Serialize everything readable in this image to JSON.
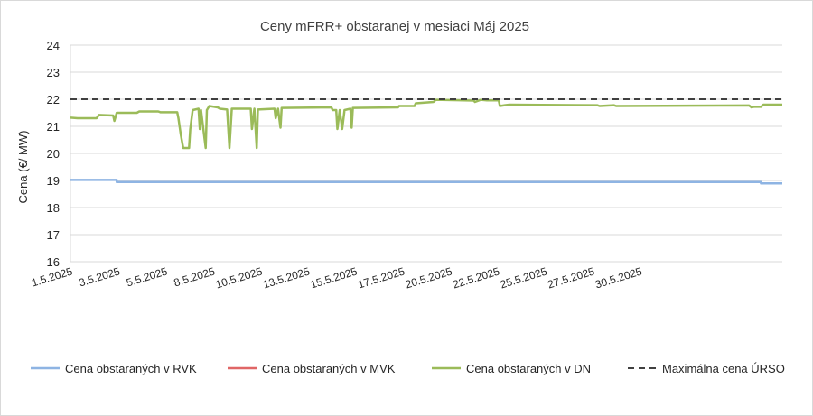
{
  "chart_data": {
    "type": "line",
    "title": "Ceny mFRR+ obstaranej v mesiaci Máj 2025",
    "ylabel": "Cena (€/ MW)",
    "xlabel": "",
    "ylim": [
      16,
      24
    ],
    "yticks": [
      16,
      17,
      18,
      19,
      20,
      21,
      22,
      23,
      24
    ],
    "x_range": [
      "1.5.2025",
      "31.5.2025"
    ],
    "x_ticks": [
      {
        "label": "1.5.2025",
        "day": 1
      },
      {
        "label": "3.5.2025",
        "day": 3
      },
      {
        "label": "5.5.2025",
        "day": 5
      },
      {
        "label": "8.5.2025",
        "day": 7
      },
      {
        "label": "10.5.2025",
        "day": 9
      },
      {
        "label": "13.5.2025",
        "day": 11
      },
      {
        "label": "15.5.2025",
        "day": 13
      },
      {
        "label": "17.5.2025",
        "day": 15
      },
      {
        "label": "20.5.2025",
        "day": 17
      },
      {
        "label": "22.5.2025",
        "day": 19
      },
      {
        "label": "25.5.2025",
        "day": 21
      },
      {
        "label": "27.5.2025",
        "day": 23
      },
      {
        "label": "30.5.2025",
        "day": 25
      }
    ],
    "grid": "horizontal",
    "legend": "bottom",
    "series": [
      {
        "name": "Cena obstaraných v RVK",
        "color": "#8eb4e3",
        "dash": "solid",
        "points": [
          [
            1,
            19.02
          ],
          [
            2.95,
            19.02
          ],
          [
            2.95,
            18.94
          ],
          [
            30.1,
            18.94
          ],
          [
            30.1,
            18.89
          ],
          [
            31,
            18.89
          ]
        ]
      },
      {
        "name": "Cena obstaraných v MVK",
        "color": "#e06666",
        "dash": "solid",
        "points": []
      },
      {
        "name": "Cena obstaraných v DN",
        "color": "#9bbb59",
        "dash": "solid",
        "points": [
          [
            1,
            21.32
          ],
          [
            1.3,
            21.3
          ],
          [
            2.1,
            21.3
          ],
          [
            2.2,
            21.42
          ],
          [
            2.8,
            21.4
          ],
          [
            2.85,
            21.2
          ],
          [
            2.95,
            21.5
          ],
          [
            3.8,
            21.5
          ],
          [
            3.9,
            21.55
          ],
          [
            4.7,
            21.55
          ],
          [
            4.8,
            21.52
          ],
          [
            5.5,
            21.52
          ],
          [
            5.55,
            21.3
          ],
          [
            5.65,
            20.7
          ],
          [
            5.75,
            20.2
          ],
          [
            6.0,
            20.2
          ],
          [
            6.05,
            20.9
          ],
          [
            6.15,
            21.6
          ],
          [
            6.4,
            21.65
          ],
          [
            6.45,
            20.9
          ],
          [
            6.5,
            21.6
          ],
          [
            6.7,
            20.2
          ],
          [
            6.75,
            21.6
          ],
          [
            6.85,
            21.75
          ],
          [
            7.2,
            21.7
          ],
          [
            7.3,
            21.65
          ],
          [
            7.6,
            21.62
          ],
          [
            7.7,
            20.2
          ],
          [
            7.8,
            21.65
          ],
          [
            8.6,
            21.65
          ],
          [
            8.65,
            20.9
          ],
          [
            8.75,
            21.65
          ],
          [
            8.85,
            20.2
          ],
          [
            8.9,
            21.62
          ],
          [
            9.6,
            21.65
          ],
          [
            9.65,
            21.3
          ],
          [
            9.75,
            21.65
          ],
          [
            9.85,
            20.95
          ],
          [
            9.9,
            21.68
          ],
          [
            12.0,
            21.7
          ],
          [
            12.05,
            21.6
          ],
          [
            12.2,
            21.6
          ],
          [
            12.25,
            20.9
          ],
          [
            12.35,
            21.6
          ],
          [
            12.45,
            20.9
          ],
          [
            12.55,
            21.6
          ],
          [
            12.8,
            21.65
          ],
          [
            12.85,
            20.95
          ],
          [
            12.9,
            21.68
          ],
          [
            14.8,
            21.7
          ],
          [
            14.85,
            21.75
          ],
          [
            15.5,
            21.75
          ],
          [
            15.55,
            21.85
          ],
          [
            16.3,
            21.9
          ],
          [
            16.4,
            21.98
          ],
          [
            18.0,
            21.95
          ],
          [
            18.05,
            21.9
          ],
          [
            18.3,
            21.98
          ],
          [
            18.55,
            21.96
          ],
          [
            19.05,
            21.96
          ],
          [
            19.1,
            21.75
          ],
          [
            19.3,
            21.78
          ],
          [
            19.5,
            21.8
          ],
          [
            23.2,
            21.78
          ],
          [
            23.3,
            21.75
          ],
          [
            23.9,
            21.78
          ],
          [
            24.0,
            21.75
          ],
          [
            29.6,
            21.77
          ],
          [
            29.7,
            21.7
          ],
          [
            29.8,
            21.72
          ],
          [
            30.1,
            21.72
          ],
          [
            30.2,
            21.8
          ],
          [
            31,
            21.8
          ]
        ]
      },
      {
        "name": "Maximálna cena ÚRSO",
        "color": "#404040",
        "dash": "dashed",
        "points": [
          [
            1,
            22
          ],
          [
            31,
            22
          ]
        ]
      }
    ]
  }
}
